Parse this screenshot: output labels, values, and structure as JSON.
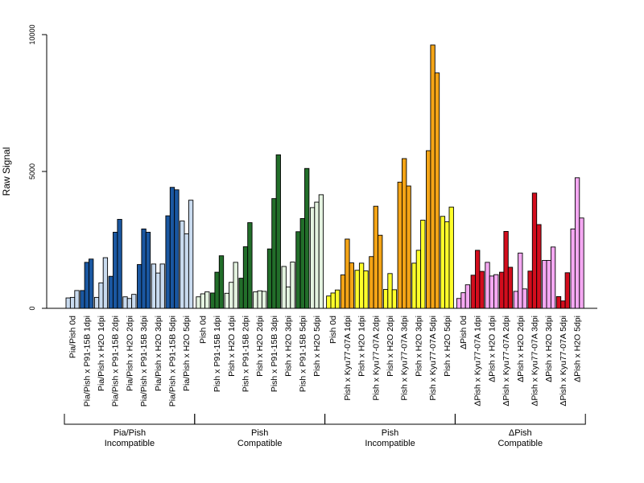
{
  "chart_data": {
    "type": "bar",
    "ylabel": "Raw Signal",
    "ylim": [
      0,
      10000
    ],
    "yticks": [
      0,
      5000,
      10000
    ],
    "bars_per_category": 3,
    "categories": [
      "Pia/Pish 0d",
      "Pia/Pish x P91-15B 1dpi",
      "Pia/Pish x H2O 1dpi",
      "Pia/Pish x P91-15B 2dpi",
      "Pia/Pish x H2O 2dpi",
      "Pia/Pish x P91-15B 3dpi",
      "Pia/Pish x H2O 3dpi",
      "Pia/Pish x P91-15B 5dpi",
      "Pia/Pish x H2O 5dpi",
      "Pish 0d",
      "Pish x P91-15B 1dpi",
      "Pish x H2O 1dpi",
      "Pish x P91-15B 2dpi",
      "Pish x H2O 2dpi",
      "Pish x P91-15B 3dpi",
      "Pish x H2O 3dpi",
      "Pish x P91-15B 5dpi",
      "Pish x H2O 5dpi",
      "Pish 0d",
      "Pish x Kyu77-07A 1dpi",
      "Pish x H2O 1dpi",
      "Pish x Kyu77-07A 2dpi",
      "Pish x H2O 2dpi",
      "Pish x Kyu77-07A 3dpi",
      "Pish x H2O 3dpi",
      "Pish x Kyu77-07A 5dpi",
      "Pish x H2O 5dpi",
      "ΔPish 0d",
      "ΔPish x Kyu77-07A 1dpi",
      "ΔPish x H2O 1dpi",
      "ΔPish x Kyu77-07A 2dpi",
      "ΔPish x H2O 2dpi",
      "ΔPish x Kyu77-07A 3dpi",
      "ΔPish x H2O 3dpi",
      "ΔPish x Kyu77-07A 5dpi",
      "ΔPish x H2O 5dpi"
    ],
    "values": [
      [
        380,
        400,
        650
      ],
      [
        650,
        1680,
        1800
      ],
      [
        400,
        930,
        1850
      ],
      [
        1170,
        2780,
        3250
      ],
      [
        420,
        360,
        510
      ],
      [
        1600,
        2900,
        2780
      ],
      [
        1620,
        1290,
        1620
      ],
      [
        3380,
        4420,
        4330
      ],
      [
        3190,
        2720,
        3950
      ],
      [
        420,
        530,
        600
      ],
      [
        560,
        1320,
        1920
      ],
      [
        550,
        950,
        1680
      ],
      [
        1100,
        2250,
        3130
      ],
      [
        600,
        640,
        620
      ],
      [
        2170,
        4010,
        5610
      ],
      [
        1530,
        780,
        1690
      ],
      [
        2800,
        3280,
        5110
      ],
      [
        3680,
        3880,
        4150
      ],
      [
        450,
        560,
        670
      ],
      [
        1220,
        2530,
        1660
      ],
      [
        1390,
        1650,
        1370
      ],
      [
        1890,
        3730,
        2670
      ],
      [
        690,
        1270,
        680
      ],
      [
        4610,
        5470,
        4470
      ],
      [
        1650,
        2120,
        3220
      ],
      [
        5760,
        9620,
        8600
      ],
      [
        3360,
        3160,
        3700
      ],
      [
        360,
        570,
        860
      ],
      [
        1210,
        2120,
        1350
      ],
      [
        1680,
        1180,
        1230
      ],
      [
        1320,
        2810,
        1500
      ],
      [
        620,
        2020,
        710
      ],
      [
        1360,
        4210,
        3060
      ],
      [
        1750,
        1750,
        2240
      ],
      [
        430,
        270,
        1300
      ],
      [
        2900,
        4770,
        3300
      ]
    ],
    "groups": [
      {
        "line1": "Pia/Pish",
        "line2": "Incompatible",
        "from": 0,
        "to": 8,
        "colors": [
          "#1a57a1",
          "#c9dbef"
        ]
      },
      {
        "line1": "Pish",
        "line2": "Compatible",
        "from": 9,
        "to": 17,
        "colors": [
          "#226e2a",
          "#e4f3e0"
        ]
      },
      {
        "line1": "Pish",
        "line2": "Incompatible",
        "from": 18,
        "to": 26,
        "colors": [
          "#ffff2a",
          "#f4a416"
        ]
      },
      {
        "line1": "ΔPish",
        "line2": "Compatible",
        "from": 27,
        "to": 35,
        "colors": [
          "#f5a8f2",
          "#d30d1d"
        ]
      }
    ],
    "grid": false,
    "legend": "none"
  }
}
